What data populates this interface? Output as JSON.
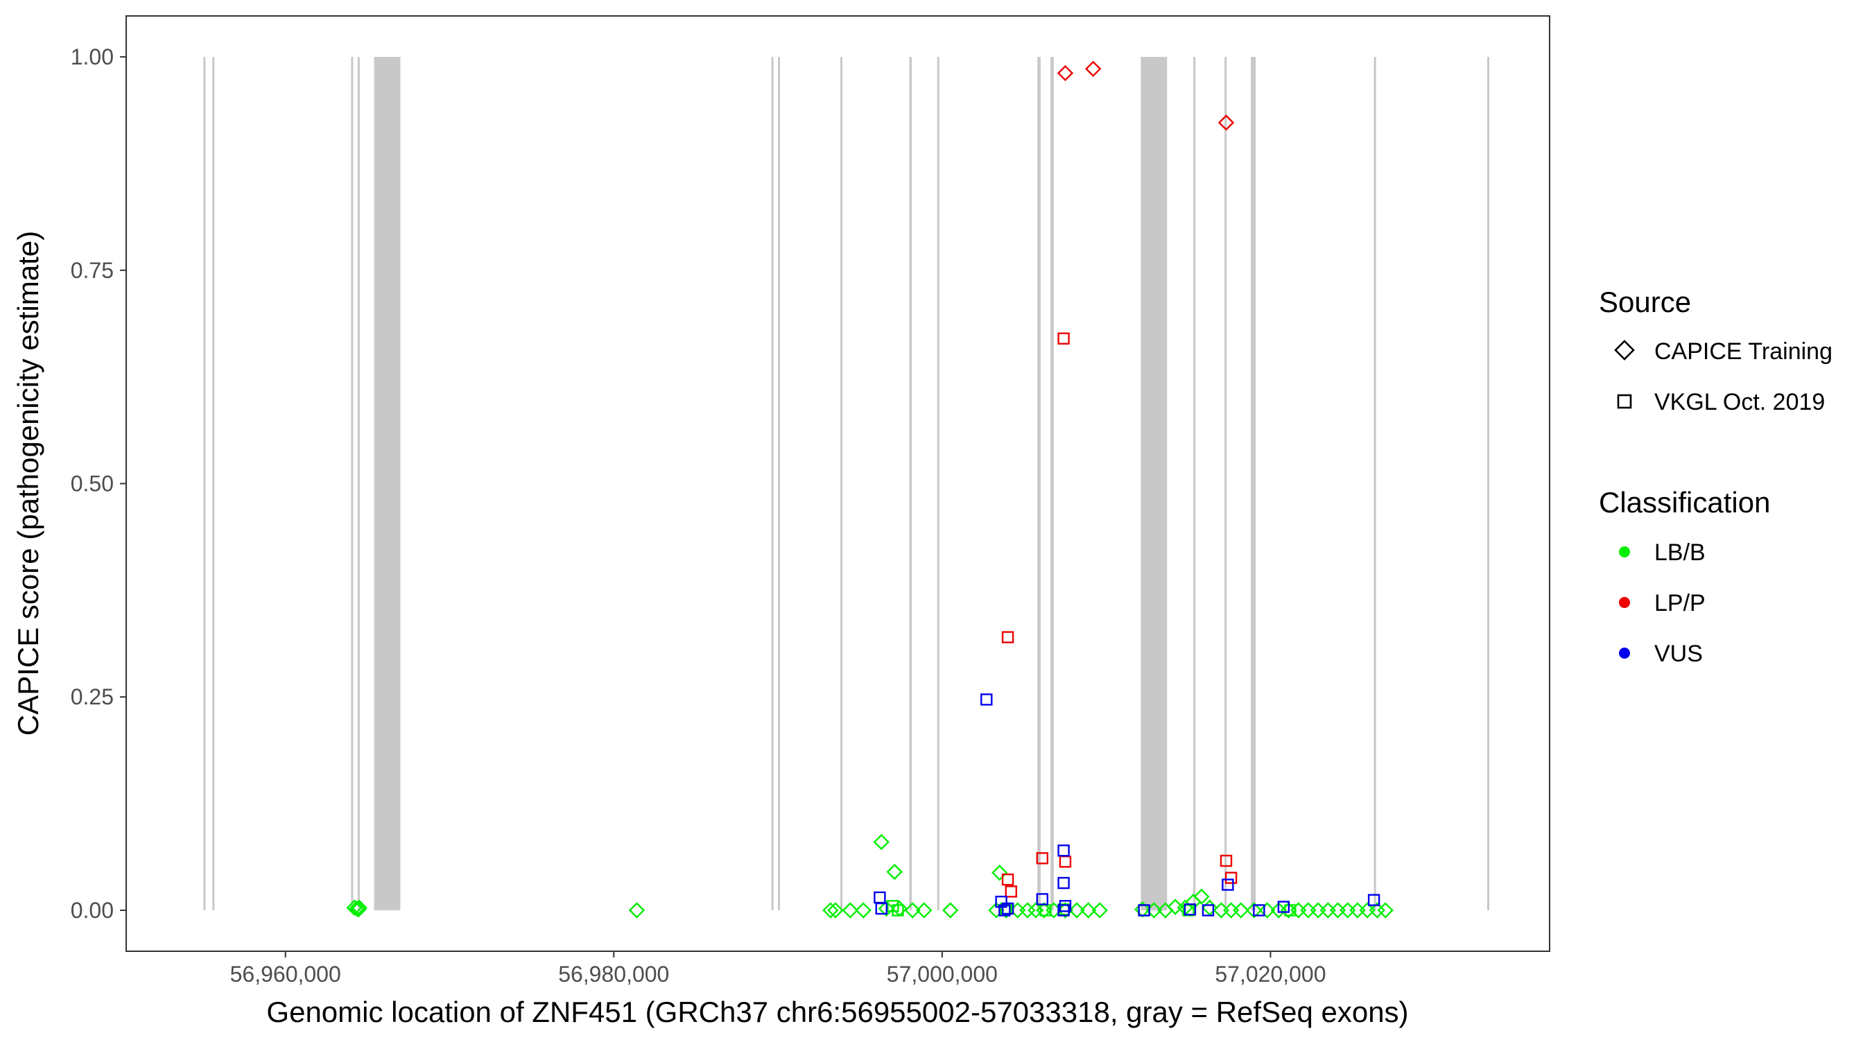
{
  "chart_data": {
    "type": "scatter",
    "xlabel": "Genomic location of ZNF451 (GRCh37 chr6:56955002-57033318, gray = RefSeq exons)",
    "ylabel": "CAPICE score (pathogenicity estimate)",
    "xlim": [
      56950300,
      57037000
    ],
    "ylim": [
      -0.048,
      1.048
    ],
    "x_ticks": [
      56960000,
      56980000,
      57000000,
      57020000
    ],
    "x_tick_labels": [
      "56,960,000",
      "56,980,000",
      "57,000,000",
      "57,020,000"
    ],
    "y_ticks": [
      0,
      0.25,
      0.5,
      0.75,
      1.0
    ],
    "y_tick_labels": [
      "0.00",
      "0.25",
      "0.50",
      "0.75",
      "1.00"
    ],
    "grid": false,
    "exons": [
      [
        56955002,
        56955120
      ],
      [
        56955550,
        56955650
      ],
      [
        56964000,
        56964100
      ],
      [
        56964400,
        56964480
      ],
      [
        56965400,
        56967000
      ],
      [
        56989600,
        56989700
      ],
      [
        56990000,
        56990100
      ],
      [
        56993800,
        56993900
      ],
      [
        56998000,
        56998150
      ],
      [
        56999700,
        56999800
      ],
      [
        57005800,
        57006000
      ],
      [
        57006600,
        57006800
      ],
      [
        57012100,
        57013700
      ],
      [
        57015300,
        57015400
      ],
      [
        57017200,
        57017300
      ],
      [
        57018800,
        57019100
      ],
      [
        57026300,
        57026400
      ],
      [
        57033200,
        57033318
      ]
    ],
    "legend": {
      "placement": "right",
      "source_title": "Source",
      "source_entries": [
        {
          "label": "CAPICE Training",
          "shape": "diamond"
        },
        {
          "label": "VKGL Oct. 2019",
          "shape": "square"
        }
      ],
      "class_title": "Classification",
      "class_entries": [
        {
          "label": "LB/B",
          "color": "#00ee00"
        },
        {
          "label": "LP/P",
          "color": "#ee0000"
        },
        {
          "label": "VUS",
          "color": "#0000ee"
        }
      ]
    },
    "series": [
      {
        "classification": "LB/B",
        "source": "CAPICE Training",
        "shape": "diamond",
        "color": "#00ee00",
        "points": [
          [
            56964200,
            0.003
          ],
          [
            56964350,
            0.002
          ],
          [
            56964450,
            0.001
          ],
          [
            56964500,
            0.003
          ],
          [
            56981400,
            0.0
          ],
          [
            56993200,
            0.0
          ],
          [
            56993500,
            0.0
          ],
          [
            56994400,
            0.0
          ],
          [
            56995200,
            0.0
          ],
          [
            56996300,
            0.08
          ],
          [
            56996600,
            0.002
          ],
          [
            56997100,
            0.045
          ],
          [
            56997400,
            0.002
          ],
          [
            56998200,
            0.0
          ],
          [
            56998900,
            0.0
          ],
          [
            57000500,
            0.0
          ],
          [
            57003300,
            0.0
          ],
          [
            57003500,
            0.044
          ],
          [
            57003900,
            0.0
          ],
          [
            57004600,
            0.0
          ],
          [
            57005200,
            0.0
          ],
          [
            57005700,
            0.0
          ],
          [
            57006200,
            0.0
          ],
          [
            57006800,
            0.0
          ],
          [
            57007500,
            0.0
          ],
          [
            57008200,
            0.0
          ],
          [
            57008900,
            0.0
          ],
          [
            57009600,
            0.0
          ],
          [
            57012200,
            0.001
          ],
          [
            57012900,
            0.0
          ],
          [
            57013600,
            0.0
          ],
          [
            57014200,
            0.004
          ],
          [
            57014800,
            0.003
          ],
          [
            57015300,
            0.01
          ],
          [
            57015800,
            0.016
          ],
          [
            57016300,
            0.003
          ],
          [
            57017000,
            0.0
          ],
          [
            57017600,
            0.0
          ],
          [
            57018200,
            0.0
          ],
          [
            57019000,
            0.0
          ],
          [
            57019800,
            0.0
          ],
          [
            57020500,
            0.0
          ],
          [
            57021100,
            0.0
          ],
          [
            57021700,
            0.0
          ],
          [
            57022300,
            0.0
          ],
          [
            57022900,
            0.0
          ],
          [
            57023500,
            0.0
          ],
          [
            57024100,
            0.0
          ],
          [
            57024700,
            0.0
          ],
          [
            57025300,
            0.0
          ],
          [
            57025900,
            0.0
          ],
          [
            57026500,
            0.0
          ],
          [
            57027000,
            0.0
          ]
        ]
      },
      {
        "classification": "LB/B",
        "source": "VKGL Oct. 2019",
        "shape": "square",
        "color": "#00ee00",
        "points": [
          [
            56997000,
            0.005
          ],
          [
            56997300,
            0.0
          ],
          [
            57003900,
            0.002
          ],
          [
            57006300,
            0.0
          ],
          [
            57007400,
            0.001
          ],
          [
            57012300,
            0.0
          ],
          [
            57015000,
            0.0
          ],
          [
            57021200,
            0.0
          ]
        ]
      },
      {
        "classification": "LP/P",
        "source": "CAPICE Training",
        "shape": "diamond",
        "color": "#ee0000",
        "points": [
          [
            57007500,
            0.981
          ],
          [
            57009200,
            0.986
          ],
          [
            57017300,
            0.923
          ]
        ]
      },
      {
        "classification": "LP/P",
        "source": "VKGL Oct. 2019",
        "shape": "square",
        "color": "#ee0000",
        "points": [
          [
            57007400,
            0.67
          ],
          [
            57004000,
            0.32
          ],
          [
            57004000,
            0.036
          ],
          [
            57004200,
            0.022
          ],
          [
            57006100,
            0.061
          ],
          [
            57007500,
            0.057
          ],
          [
            57017300,
            0.058
          ],
          [
            57017600,
            0.038
          ]
        ]
      },
      {
        "classification": "VUS",
        "source": "VKGL Oct. 2019",
        "shape": "square",
        "color": "#0000ee",
        "points": [
          [
            57002700,
            0.247
          ],
          [
            56996200,
            0.015
          ],
          [
            56996300,
            0.002
          ],
          [
            57003600,
            0.01
          ],
          [
            57003800,
            0.0
          ],
          [
            57004000,
            0.002
          ],
          [
            57006100,
            0.013
          ],
          [
            57007400,
            0.07
          ],
          [
            57007400,
            0.032
          ],
          [
            57007500,
            0.005
          ],
          [
            57007400,
            0.0
          ],
          [
            57012300,
            0.0
          ],
          [
            57015100,
            0.001
          ],
          [
            57016200,
            0.0
          ],
          [
            57017400,
            0.03
          ],
          [
            57019300,
            0.0
          ],
          [
            57020800,
            0.004
          ],
          [
            57026300,
            0.012
          ]
        ]
      }
    ]
  }
}
